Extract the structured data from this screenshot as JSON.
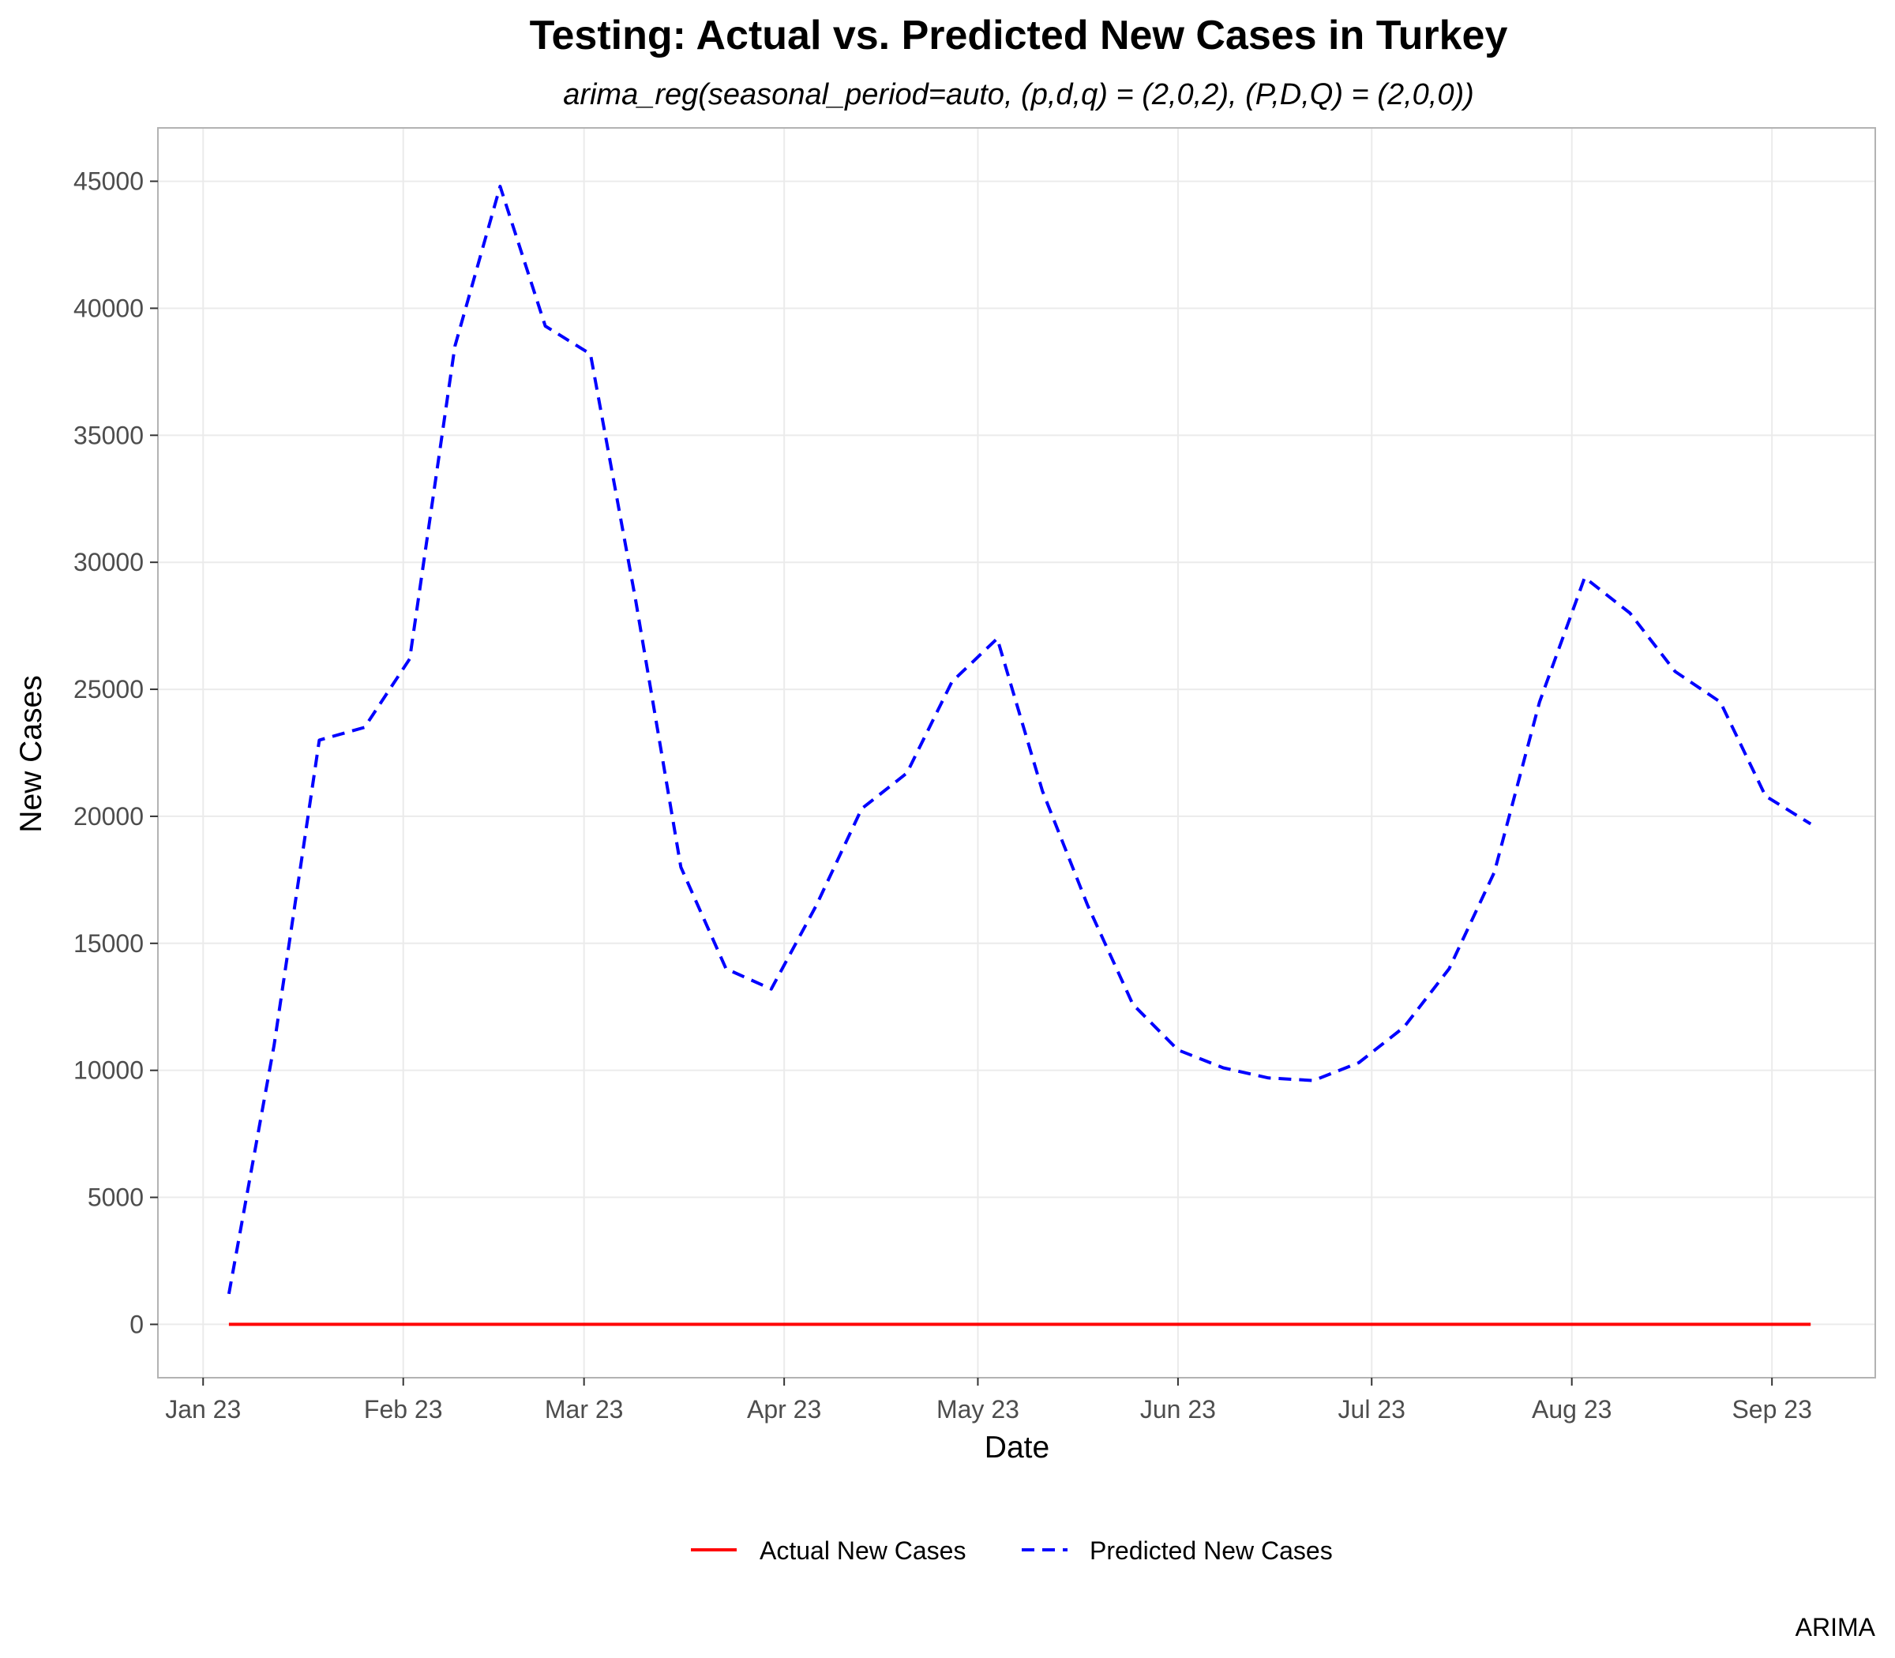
{
  "chart_data": {
    "type": "line",
    "title": "Testing: Actual vs. Predicted New Cases in Turkey",
    "subtitle": "arima_reg(seasonal_period=auto, (p,d,q) = (2,0,2), (P,D,Q) = (2,0,0))",
    "xlabel": "Date",
    "ylabel": "New Cases",
    "caption": "ARIMA",
    "x_ticks": [
      {
        "date": "2023-01-01",
        "label": "Jan 23"
      },
      {
        "date": "2023-02-01",
        "label": "Feb 23"
      },
      {
        "date": "2023-03-01",
        "label": "Mar 23"
      },
      {
        "date": "2023-04-01",
        "label": "Apr 23"
      },
      {
        "date": "2023-05-01",
        "label": "May 23"
      },
      {
        "date": "2023-06-01",
        "label": "Jun 23"
      },
      {
        "date": "2023-07-01",
        "label": "Jul 23"
      },
      {
        "date": "2023-08-01",
        "label": "Aug 23"
      },
      {
        "date": "2023-09-01",
        "label": "Sep 23"
      }
    ],
    "xlim": [
      "2022-12-25",
      "2023-09-17"
    ],
    "y_ticks": [
      0,
      5000,
      10000,
      15000,
      20000,
      25000,
      30000,
      35000,
      40000,
      45000
    ],
    "ylim": [
      -2100,
      47100
    ],
    "grid": true,
    "legend_position": "bottom",
    "series": [
      {
        "name": "Actual New Cases",
        "color": "#ff0000",
        "dash": "solid",
        "x": [
          "2023-01-05",
          "2023-01-12",
          "2023-01-19",
          "2023-01-26",
          "2023-02-02",
          "2023-02-09",
          "2023-02-16",
          "2023-02-23",
          "2023-03-02",
          "2023-03-09",
          "2023-03-16",
          "2023-03-23",
          "2023-03-30",
          "2023-04-06",
          "2023-04-13",
          "2023-04-20",
          "2023-04-27",
          "2023-05-04",
          "2023-05-11",
          "2023-05-18",
          "2023-05-25",
          "2023-06-01",
          "2023-06-08",
          "2023-06-15",
          "2023-06-22",
          "2023-06-29",
          "2023-07-06",
          "2023-07-13",
          "2023-07-20",
          "2023-07-27",
          "2023-08-03",
          "2023-08-10",
          "2023-08-17",
          "2023-08-24",
          "2023-08-31",
          "2023-09-07"
        ],
        "values": [
          0,
          0,
          0,
          0,
          0,
          0,
          0,
          0,
          0,
          0,
          0,
          0,
          0,
          0,
          0,
          0,
          0,
          0,
          0,
          0,
          0,
          0,
          0,
          0,
          0,
          0,
          0,
          0,
          0,
          0,
          0,
          0,
          0,
          0,
          0,
          0
        ]
      },
      {
        "name": "Predicted New Cases",
        "color": "#0000ff",
        "dash": "dashed",
        "x": [
          "2023-01-05",
          "2023-01-12",
          "2023-01-19",
          "2023-01-26",
          "2023-02-02",
          "2023-02-09",
          "2023-02-16",
          "2023-02-23",
          "2023-03-02",
          "2023-03-09",
          "2023-03-16",
          "2023-03-23",
          "2023-03-30",
          "2023-04-06",
          "2023-04-13",
          "2023-04-20",
          "2023-04-27",
          "2023-05-04",
          "2023-05-11",
          "2023-05-18",
          "2023-05-25",
          "2023-06-01",
          "2023-06-08",
          "2023-06-15",
          "2023-06-22",
          "2023-06-29",
          "2023-07-06",
          "2023-07-13",
          "2023-07-20",
          "2023-07-27",
          "2023-08-03",
          "2023-08-10",
          "2023-08-17",
          "2023-08-24",
          "2023-08-31",
          "2023-09-07"
        ],
        "values": [
          1200,
          11000,
          23000,
          23500,
          26200,
          38500,
          44800,
          39300,
          38200,
          28500,
          18000,
          14000,
          13200,
          16500,
          20300,
          21700,
          25300,
          27000,
          21000,
          16500,
          12600,
          10800,
          10100,
          9700,
          9600,
          10300,
          11700,
          14000,
          17800,
          24500,
          29400,
          28000,
          25700,
          24500,
          20800,
          19700
        ]
      }
    ]
  }
}
